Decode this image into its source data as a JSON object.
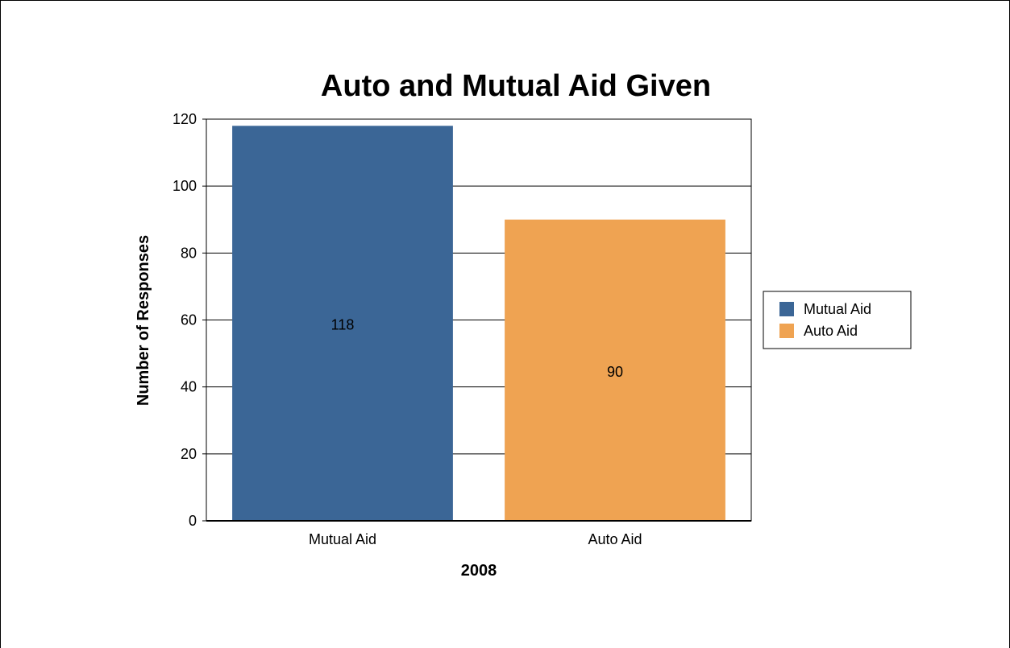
{
  "chart_data": {
    "type": "bar",
    "title": "Auto and Mutual Aid Given",
    "xlabel": "2008",
    "ylabel": "Number of Responses",
    "categories": [
      "Mutual Aid",
      "Auto Aid"
    ],
    "values": [
      118,
      90
    ],
    "data_labels": [
      "118",
      "90"
    ],
    "colors": [
      "#3b6696",
      "#efa352"
    ],
    "ylim": [
      0,
      120
    ],
    "yticks": [
      0,
      20,
      40,
      60,
      80,
      100,
      120
    ],
    "grid": true,
    "legend": {
      "placement": "right",
      "entries": [
        "Mutual Aid",
        "Auto Aid"
      ]
    }
  }
}
